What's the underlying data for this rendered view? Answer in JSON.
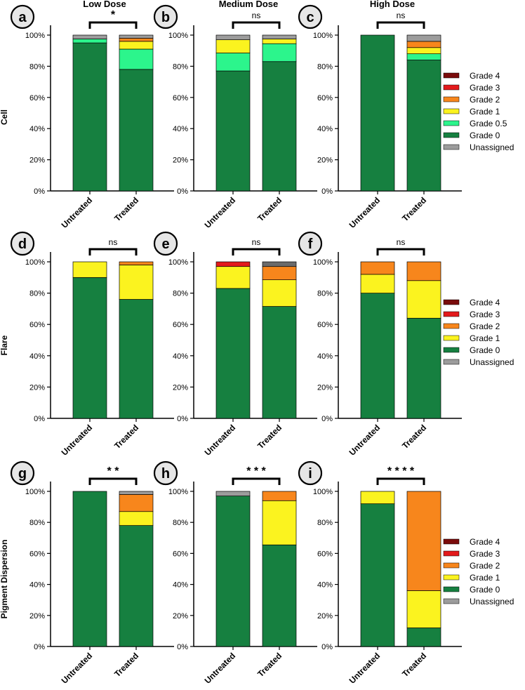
{
  "colors": {
    "Grade 4": "#7a0c0c",
    "Grade 3": "#e31a1c",
    "Grade 2": "#f7861c",
    "Grade 1": "#fbf31f",
    "Grade 0.5": "#2cf58c",
    "Grade 0": "#168040",
    "Unassigned": "#9c9c9c",
    "Unassigned (dark)": "#6b6b6b",
    "badge": "#e6e6e6"
  },
  "column_titles": [
    "Low Dose",
    "Medium Dose",
    "High Dose"
  ],
  "row_labels": [
    "Cell",
    "Flare",
    "Pigment Dispersion"
  ],
  "legends": [
    [
      "Grade 4",
      "Grade 3",
      "Grade 2",
      "Grade 1",
      "Grade 0.5",
      "Grade 0",
      "Unassigned"
    ],
    [
      "Grade 4",
      "Grade 3",
      "Grade 2",
      "Grade 1",
      "Grade 0",
      "Unassigned"
    ],
    [
      "Grade 4",
      "Grade 3",
      "Grade 2",
      "Grade 1",
      "Grade 0",
      "Unassigned"
    ]
  ],
  "chart_data": [
    {
      "panel": "a",
      "type": "bar",
      "stacked": true,
      "title": "Low Dose",
      "ylabel": "Cell",
      "ylim": [
        0,
        100
      ],
      "yticks": [
        "0%",
        "20%",
        "40%",
        "60%",
        "80%",
        "100%"
      ],
      "categories": [
        "Untreated",
        "Treated"
      ],
      "significance": "*",
      "series": [
        {
          "name": "Grade 0",
          "values": [
            95,
            78
          ]
        },
        {
          "name": "Grade 0.5",
          "values": [
            2.5,
            13
          ]
        },
        {
          "name": "Grade 1",
          "values": [
            0,
            5
          ]
        },
        {
          "name": "Grade 2",
          "values": [
            0,
            2
          ]
        },
        {
          "name": "Unassigned",
          "values": [
            2.5,
            2
          ]
        }
      ]
    },
    {
      "panel": "b",
      "type": "bar",
      "stacked": true,
      "title": "Medium Dose",
      "ylim": [
        0,
        100
      ],
      "yticks": [
        "0%",
        "20%",
        "40%",
        "60%",
        "80%",
        "100%"
      ],
      "categories": [
        "Untreated",
        "Treated"
      ],
      "significance": "ns",
      "series": [
        {
          "name": "Grade 0",
          "values": [
            77,
            83
          ]
        },
        {
          "name": "Grade 0.5",
          "values": [
            11.5,
            11.5
          ]
        },
        {
          "name": "Grade 1",
          "values": [
            8.5,
            3
          ]
        },
        {
          "name": "Unassigned",
          "values": [
            3,
            2.5
          ]
        }
      ]
    },
    {
      "panel": "c",
      "type": "bar",
      "stacked": true,
      "title": "High Dose",
      "ylim": [
        0,
        100
      ],
      "yticks": [
        "0%",
        "20%",
        "40%",
        "60%",
        "80%",
        "100%"
      ],
      "categories": [
        "Untreated",
        "Treated"
      ],
      "significance": "ns",
      "series": [
        {
          "name": "Grade 0",
          "values": [
            100,
            84
          ]
        },
        {
          "name": "Grade 0.5",
          "values": [
            0,
            4
          ]
        },
        {
          "name": "Grade 1",
          "values": [
            0,
            4
          ]
        },
        {
          "name": "Grade 2",
          "values": [
            0,
            4
          ]
        },
        {
          "name": "Unassigned",
          "values": [
            0,
            4
          ]
        }
      ]
    },
    {
      "panel": "d",
      "type": "bar",
      "stacked": true,
      "ylabel": "Flare",
      "ylim": [
        0,
        100
      ],
      "yticks": [
        "0%",
        "20%",
        "40%",
        "60%",
        "80%",
        "100%"
      ],
      "categories": [
        "Untreated",
        "Treated"
      ],
      "significance": "ns",
      "series": [
        {
          "name": "Grade 0",
          "values": [
            90,
            76
          ]
        },
        {
          "name": "Grade 1",
          "values": [
            10,
            22
          ]
        },
        {
          "name": "Grade 2",
          "values": [
            0,
            2
          ]
        }
      ]
    },
    {
      "panel": "e",
      "type": "bar",
      "stacked": true,
      "ylim": [
        0,
        100
      ],
      "yticks": [
        "0%",
        "20%",
        "40%",
        "60%",
        "80%",
        "100%"
      ],
      "categories": [
        "Untreated",
        "Treated"
      ],
      "significance": "ns",
      "series": [
        {
          "name": "Grade 0",
          "values": [
            83,
            71.5
          ]
        },
        {
          "name": "Grade 1",
          "values": [
            14,
            17
          ]
        },
        {
          "name": "Grade 2",
          "values": [
            0,
            8.5
          ]
        },
        {
          "name": "Grade 3",
          "values": [
            3,
            0
          ]
        },
        {
          "name": "Unassigned (dark)",
          "values": [
            0,
            3
          ]
        }
      ]
    },
    {
      "panel": "f",
      "type": "bar",
      "stacked": true,
      "ylim": [
        0,
        100
      ],
      "yticks": [
        "0%",
        "20%",
        "40%",
        "60%",
        "80%",
        "100%"
      ],
      "categories": [
        "Untreated",
        "Treated"
      ],
      "significance": "ns",
      "series": [
        {
          "name": "Grade 0",
          "values": [
            80,
            64
          ]
        },
        {
          "name": "Grade 1",
          "values": [
            12,
            24
          ]
        },
        {
          "name": "Grade 2",
          "values": [
            8,
            12
          ]
        }
      ]
    },
    {
      "panel": "g",
      "type": "bar",
      "stacked": true,
      "ylabel": "Pigment Dispersion",
      "ylim": [
        0,
        100
      ],
      "yticks": [
        "0%",
        "20%",
        "40%",
        "60%",
        "80%",
        "100%"
      ],
      "categories": [
        "Untreated",
        "Treated"
      ],
      "significance": "* *",
      "series": [
        {
          "name": "Grade 0",
          "values": [
            100,
            78
          ]
        },
        {
          "name": "Grade 1",
          "values": [
            0,
            9
          ]
        },
        {
          "name": "Grade 2",
          "values": [
            0,
            11
          ]
        },
        {
          "name": "Unassigned",
          "values": [
            0,
            2
          ]
        }
      ]
    },
    {
      "panel": "h",
      "type": "bar",
      "stacked": true,
      "ylim": [
        0,
        100
      ],
      "yticks": [
        "0%",
        "20%",
        "40%",
        "60%",
        "80%",
        "100%"
      ],
      "categories": [
        "Untreated",
        "Treated"
      ],
      "significance": "* * *",
      "series": [
        {
          "name": "Grade 0",
          "values": [
            97,
            65.5
          ]
        },
        {
          "name": "Grade 1",
          "values": [
            0,
            28.5
          ]
        },
        {
          "name": "Grade 2",
          "values": [
            0,
            6
          ]
        },
        {
          "name": "Unassigned",
          "values": [
            3,
            0
          ]
        }
      ]
    },
    {
      "panel": "i",
      "type": "bar",
      "stacked": true,
      "ylim": [
        0,
        100
      ],
      "yticks": [
        "0%",
        "20%",
        "40%",
        "60%",
        "80%",
        "100%"
      ],
      "categories": [
        "Untreated",
        "Treated"
      ],
      "significance": "* * * *",
      "series": [
        {
          "name": "Grade 0",
          "values": [
            92,
            12
          ]
        },
        {
          "name": "Grade 1",
          "values": [
            8,
            24
          ]
        },
        {
          "name": "Grade 2",
          "values": [
            0,
            64
          ]
        }
      ]
    }
  ]
}
